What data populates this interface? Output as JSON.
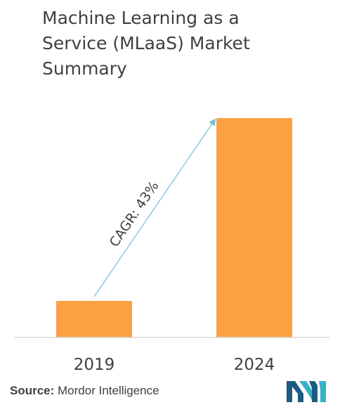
{
  "title_lines": [
    "Machine Learning as a",
    "Service (MLaaS) Market",
    "Summary"
  ],
  "source": {
    "label": "Source:",
    "text": " Mordor Intelligence"
  },
  "colors": {
    "bar": "#FCA044",
    "arrow": "#6EC1D6",
    "axis": "#d9d9d9",
    "logo_dark": "#1D5B80",
    "logo_teal": "#36B2C7"
  },
  "chart_data": {
    "type": "bar",
    "categories": [
      "2019",
      "2024"
    ],
    "values": [
      1,
      6
    ],
    "annotation": "CAGR: 43%",
    "xlabel": "",
    "ylabel": ""
  }
}
